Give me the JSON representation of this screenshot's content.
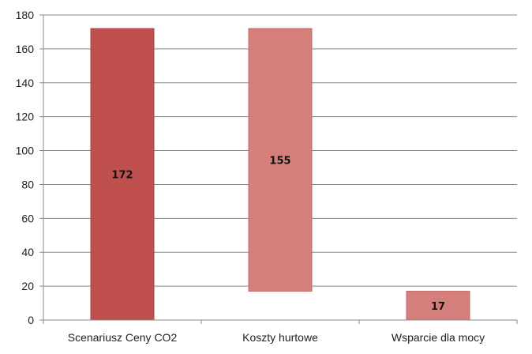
{
  "chart_data": {
    "type": "bar",
    "subtype": "waterfall",
    "categories": [
      "Scenariusz Ceny CO2",
      "Koszty hurtowe",
      "Wsparcie dla mocy"
    ],
    "values": [
      172,
      155,
      17
    ],
    "ranges": [
      [
        0,
        172
      ],
      [
        17,
        172
      ],
      [
        0,
        17
      ]
    ],
    "data_labels": [
      "172",
      "155",
      "17"
    ],
    "y_ticks": [
      "0",
      "20",
      "40",
      "60",
      "80",
      "100",
      "120",
      "140",
      "160",
      "180"
    ],
    "ylim": [
      0,
      180
    ],
    "title": "",
    "xlabel": "",
    "ylabel": "",
    "grid": true,
    "legend": "none",
    "colors": {
      "bar_1": "#c0504d",
      "bar_2": "#d47f7c",
      "bar_3": "#d47f7c",
      "bar_1_edge": "#a94441",
      "bar_2_edge": "#c06b68",
      "grid": "#888888",
      "axis": "#888888"
    }
  }
}
